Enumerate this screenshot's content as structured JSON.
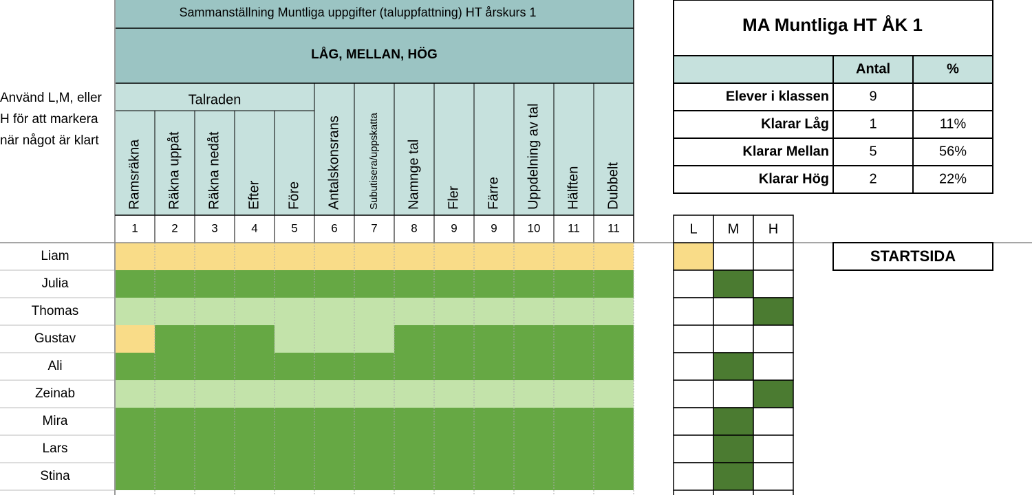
{
  "sheet": {
    "instruction": [
      "Använd L,M, eller",
      "H för att markera",
      "när något är klart"
    ],
    "title": "Sammanställning Muntliga uppgifter (taluppfattning) HT årskurs 1",
    "subtitle": "LÅG, MELLAN, HÖG",
    "group": "Talraden",
    "columns": [
      "Ramsräkna",
      "Räkna uppåt",
      "Räkna nedåt",
      "Efter",
      "Före",
      "Antalskonsrans",
      "Subutisera/uppskatta",
      "Namnge tal",
      "Fler",
      "Färre",
      "Uppdelning av tal",
      "Hälften",
      "Dubbelt"
    ],
    "numbers": [
      1,
      2,
      3,
      4,
      5,
      6,
      7,
      8,
      9,
      9,
      10,
      11,
      11
    ],
    "students": [
      "Liam",
      "Julia",
      "Thomas",
      "Gustav",
      "Ali",
      "Zeinab",
      "Mira",
      "Lars",
      "Stina"
    ],
    "cell_colors": [
      [
        "#f9dc88",
        "#f9dc88",
        "#f9dc88",
        "#f9dc88",
        "#f9dc88",
        "#f9dc88",
        "#f9dc88",
        "#f9dc88",
        "#f9dc88",
        "#f9dc88",
        "#f9dc88",
        "#f9dc88",
        "#f9dc88"
      ],
      [
        "#66a844",
        "#66a844",
        "#66a844",
        "#66a844",
        "#66a844",
        "#66a844",
        "#66a844",
        "#66a844",
        "#66a844",
        "#66a844",
        "#66a844",
        "#66a844",
        "#66a844"
      ],
      [
        "#c3e3aa",
        "#c3e3aa",
        "#c3e3aa",
        "#c3e3aa",
        "#c3e3aa",
        "#c3e3aa",
        "#c3e3aa",
        "#c3e3aa",
        "#c3e3aa",
        "#c3e3aa",
        "#c3e3aa",
        "#c3e3aa",
        "#c3e3aa"
      ],
      [
        "#f9dc88",
        "#66a844",
        "#66a844",
        "#66a844",
        "#c3e3aa",
        "#c3e3aa",
        "#c3e3aa",
        "#66a844",
        "#66a844",
        "#66a844",
        "#66a844",
        "#66a844",
        "#66a844"
      ],
      [
        "#66a844",
        "#66a844",
        "#66a844",
        "#66a844",
        "#66a844",
        "#66a844",
        "#66a844",
        "#66a844",
        "#66a844",
        "#66a844",
        "#66a844",
        "#66a844",
        "#66a844"
      ],
      [
        "#c3e3aa",
        "#c3e3aa",
        "#c3e3aa",
        "#c3e3aa",
        "#c3e3aa",
        "#c3e3aa",
        "#c3e3aa",
        "#c3e3aa",
        "#c3e3aa",
        "#c3e3aa",
        "#c3e3aa",
        "#c3e3aa",
        "#c3e3aa"
      ],
      [
        "#66a844",
        "#66a844",
        "#66a844",
        "#66a844",
        "#66a844",
        "#66a844",
        "#66a844",
        "#66a844",
        "#66a844",
        "#66a844",
        "#66a844",
        "#66a844",
        "#66a844"
      ],
      [
        "#66a844",
        "#66a844",
        "#66a844",
        "#66a844",
        "#66a844",
        "#66a844",
        "#66a844",
        "#66a844",
        "#66a844",
        "#66a844",
        "#66a844",
        "#66a844",
        "#66a844"
      ],
      [
        "#66a844",
        "#66a844",
        "#66a844",
        "#66a844",
        "#66a844",
        "#66a844",
        "#66a844",
        "#66a844",
        "#66a844",
        "#66a844",
        "#66a844",
        "#66a844",
        "#66a844"
      ]
    ],
    "level_headers": [
      "L",
      "M",
      "H"
    ],
    "level_colors": [
      [
        "#f9dc88",
        "#ffffff",
        "#ffffff"
      ],
      [
        "#ffffff",
        "#4b7b31",
        "#ffffff"
      ],
      [
        "#ffffff",
        "#ffffff",
        "#4b7b31"
      ],
      [
        "#ffffff",
        "#ffffff",
        "#ffffff"
      ],
      [
        "#ffffff",
        "#4b7b31",
        "#ffffff"
      ],
      [
        "#ffffff",
        "#ffffff",
        "#4b7b31"
      ],
      [
        "#ffffff",
        "#4b7b31",
        "#ffffff"
      ],
      [
        "#ffffff",
        "#4b7b31",
        "#ffffff"
      ],
      [
        "#ffffff",
        "#4b7b31",
        "#ffffff"
      ]
    ]
  },
  "summary": {
    "title": "MA Muntliga HT ÅK 1",
    "headers": [
      "Antal",
      "%"
    ],
    "rows": [
      [
        "Elever i klassen",
        "9",
        null
      ],
      [
        "Klarar Låg",
        "1",
        "11%"
      ],
      [
        "Klarar Mellan",
        "5",
        "56%"
      ],
      [
        "Klarar Hög",
        "2",
        "22%"
      ]
    ]
  },
  "button": "STARTSIDA"
}
